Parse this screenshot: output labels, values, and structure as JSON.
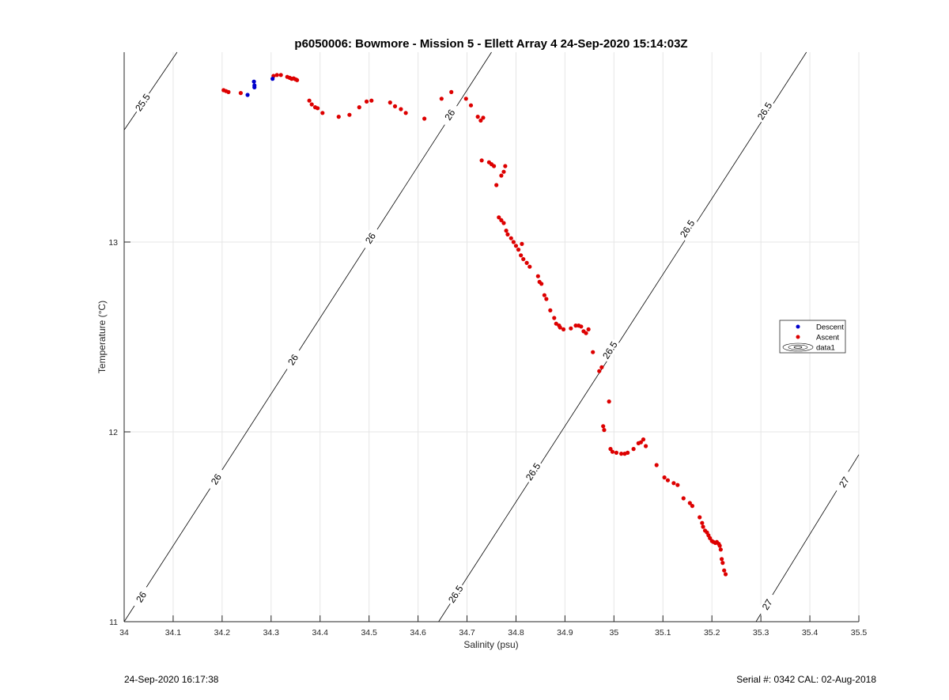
{
  "footer": {
    "timestamp": "24-Sep-2020 16:17:38",
    "serial": "Serial #: 0342  CAL: 02-Aug-2018"
  },
  "colors": {
    "descent": "#0000cc",
    "ascent": "#dd0000",
    "grid": "#e6e6e6",
    "contour": "#000000"
  },
  "chart_data": {
    "type": "scatter",
    "title": "p6050006: Bowmore - Mission 5 - Ellett Array 4 24-Sep-2020 15:14:03Z",
    "xlabel": "Salinity (psu)",
    "ylabel": "Temperature (°C)",
    "xlim": [
      34,
      35.5
    ],
    "ylim": [
      11,
      14
    ],
    "xticks": [
      "34",
      "34.1",
      "34.2",
      "34.3",
      "34.4",
      "34.5",
      "34.6",
      "34.7",
      "34.8",
      "34.9",
      "35",
      "35.1",
      "35.2",
      "35.3",
      "35.4",
      "35.5"
    ],
    "yticks": [
      "11",
      "12",
      "13"
    ],
    "grid": true,
    "legend_position": "right",
    "legend": [
      "Descent",
      "Ascent",
      "data1"
    ],
    "series": [
      {
        "name": "Descent",
        "marker": "dot",
        "points": [
          [
            34.252,
            13.775
          ],
          [
            34.265,
            13.845
          ],
          [
            34.266,
            13.825
          ],
          [
            34.266,
            13.815
          ],
          [
            34.303,
            13.86
          ]
        ]
      },
      {
        "name": "Ascent",
        "marker": "dot",
        "points": [
          [
            34.203,
            13.8
          ],
          [
            34.208,
            13.795
          ],
          [
            34.213,
            13.79
          ],
          [
            34.238,
            13.785
          ],
          [
            34.305,
            13.875
          ],
          [
            34.312,
            13.88
          ],
          [
            34.32,
            13.88
          ],
          [
            34.333,
            13.87
          ],
          [
            34.338,
            13.865
          ],
          [
            34.342,
            13.86
          ],
          [
            34.346,
            13.862
          ],
          [
            34.35,
            13.857
          ],
          [
            34.353,
            13.853
          ],
          [
            34.378,
            13.745
          ],
          [
            34.383,
            13.725
          ],
          [
            34.39,
            13.71
          ],
          [
            34.395,
            13.705
          ],
          [
            34.405,
            13.68
          ],
          [
            34.438,
            13.66
          ],
          [
            34.46,
            13.67
          ],
          [
            34.48,
            13.71
          ],
          [
            34.495,
            13.74
          ],
          [
            34.505,
            13.745
          ],
          [
            34.543,
            13.735
          ],
          [
            34.553,
            13.715
          ],
          [
            34.565,
            13.7
          ],
          [
            34.575,
            13.68
          ],
          [
            34.613,
            13.65
          ],
          [
            34.648,
            13.755
          ],
          [
            34.668,
            13.79
          ],
          [
            34.698,
            13.755
          ],
          [
            34.708,
            13.72
          ],
          [
            34.722,
            13.66
          ],
          [
            34.728,
            13.64
          ],
          [
            34.733,
            13.655
          ],
          [
            34.73,
            13.43
          ],
          [
            34.745,
            13.42
          ],
          [
            34.75,
            13.41
          ],
          [
            34.755,
            13.4
          ],
          [
            34.76,
            13.3
          ],
          [
            34.77,
            13.35
          ],
          [
            34.775,
            13.37
          ],
          [
            34.778,
            13.4
          ],
          [
            34.765,
            13.13
          ],
          [
            34.77,
            13.115
          ],
          [
            34.775,
            13.1
          ],
          [
            34.78,
            13.06
          ],
          [
            34.783,
            13.04
          ],
          [
            34.79,
            13.02
          ],
          [
            34.795,
            13.0
          ],
          [
            34.8,
            12.98
          ],
          [
            34.805,
            12.96
          ],
          [
            34.812,
            12.99
          ],
          [
            34.81,
            12.93
          ],
          [
            34.815,
            12.91
          ],
          [
            34.822,
            12.89
          ],
          [
            34.828,
            12.87
          ],
          [
            34.845,
            12.82
          ],
          [
            34.848,
            12.79
          ],
          [
            34.852,
            12.78
          ],
          [
            34.858,
            12.72
          ],
          [
            34.862,
            12.7
          ],
          [
            34.87,
            12.64
          ],
          [
            34.878,
            12.6
          ],
          [
            34.882,
            12.57
          ],
          [
            34.888,
            12.56
          ],
          [
            34.89,
            12.55
          ],
          [
            34.897,
            12.54
          ],
          [
            34.912,
            12.545
          ],
          [
            34.922,
            12.56
          ],
          [
            34.928,
            12.56
          ],
          [
            34.933,
            12.555
          ],
          [
            34.938,
            12.53
          ],
          [
            34.943,
            12.52
          ],
          [
            34.948,
            12.54
          ],
          [
            34.957,
            12.42
          ],
          [
            34.97,
            12.32
          ],
          [
            34.975,
            12.34
          ],
          [
            34.978,
            12.03
          ],
          [
            34.98,
            12.01
          ],
          [
            34.99,
            12.16
          ],
          [
            34.993,
            11.91
          ],
          [
            34.997,
            11.895
          ],
          [
            35.005,
            11.89
          ],
          [
            35.015,
            11.885
          ],
          [
            35.022,
            11.885
          ],
          [
            35.028,
            11.89
          ],
          [
            35.04,
            11.91
          ],
          [
            35.05,
            11.94
          ],
          [
            35.055,
            11.945
          ],
          [
            35.06,
            11.96
          ],
          [
            35.065,
            11.925
          ],
          [
            35.087,
            11.825
          ],
          [
            35.103,
            11.76
          ],
          [
            35.11,
            11.745
          ],
          [
            35.122,
            11.73
          ],
          [
            35.13,
            11.72
          ],
          [
            35.142,
            11.65
          ],
          [
            35.155,
            11.625
          ],
          [
            35.16,
            11.61
          ],
          [
            35.175,
            11.55
          ],
          [
            35.18,
            11.52
          ],
          [
            35.182,
            11.5
          ],
          [
            35.186,
            11.48
          ],
          [
            35.19,
            11.47
          ],
          [
            35.193,
            11.455
          ],
          [
            35.196,
            11.44
          ],
          [
            35.2,
            11.425
          ],
          [
            35.203,
            11.42
          ],
          [
            35.207,
            11.415
          ],
          [
            35.21,
            11.42
          ],
          [
            35.214,
            11.41
          ],
          [
            35.216,
            11.4
          ],
          [
            35.218,
            11.38
          ],
          [
            35.22,
            11.33
          ],
          [
            35.222,
            11.31
          ],
          [
            35.225,
            11.27
          ],
          [
            35.228,
            11.25
          ]
        ]
      }
    ],
    "density_contours": [
      {
        "level": "25.5",
        "start": [
          34.0,
          13.59
        ],
        "end": [
          34.108,
          14.0
        ],
        "labels": [
          {
            "text": "25.5",
            "s": 34.038,
            "t": 13.735
          }
        ]
      },
      {
        "level": "26",
        "start": [
          34.0,
          11.0
        ],
        "end": [
          34.75,
          14.0
        ],
        "labels": [
          {
            "text": "26",
            "s": 34.035,
            "t": 11.13
          },
          {
            "text": "26",
            "s": 34.188,
            "t": 11.75
          },
          {
            "text": "26",
            "s": 34.345,
            "t": 12.38
          },
          {
            "text": "26",
            "s": 34.503,
            "t": 13.02
          },
          {
            "text": "26",
            "s": 34.665,
            "t": 13.67
          }
        ]
      },
      {
        "level": "26.5",
        "start": [
          34.642,
          11.0
        ],
        "end": [
          35.393,
          14.0
        ],
        "labels": [
          {
            "text": "26.5",
            "s": 34.677,
            "t": 11.145
          },
          {
            "text": "26.5",
            "s": 34.835,
            "t": 11.79
          },
          {
            "text": "26.5",
            "s": 34.992,
            "t": 12.43
          },
          {
            "text": "26.5",
            "s": 35.15,
            "t": 13.07
          },
          {
            "text": "26.5",
            "s": 35.308,
            "t": 13.69
          }
        ]
      },
      {
        "level": "27",
        "start": [
          35.29,
          11.0
        ],
        "end": [
          35.5,
          11.88
        ],
        "labels": [
          {
            "text": "27",
            "s": 35.313,
            "t": 11.09
          },
          {
            "text": "27",
            "s": 35.47,
            "t": 11.735
          }
        ]
      }
    ]
  }
}
